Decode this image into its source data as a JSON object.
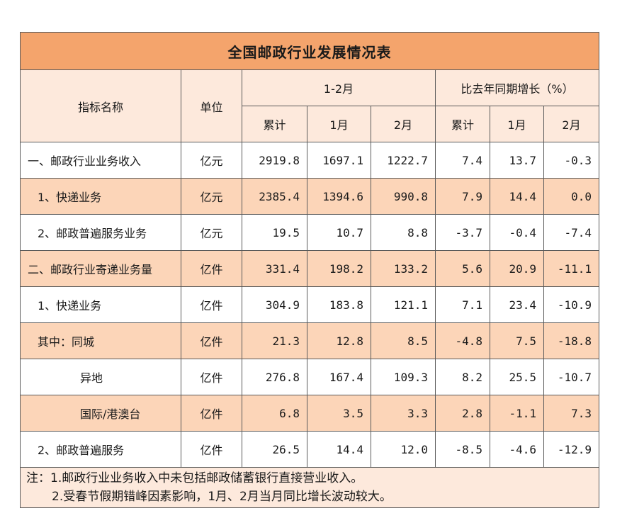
{
  "title": "全国邮政行业发展情况表",
  "headers": {
    "indicator": "指标名称",
    "unit": "单位",
    "period": "1-2月",
    "growth": "比去年同期增长（%）",
    "sub": [
      "累计",
      "1月",
      "2月",
      "累计",
      "1月",
      "2月"
    ]
  },
  "rows": [
    {
      "name": "一、邮政行业业务收入",
      "unit": "亿元",
      "values": [
        "2919.8",
        "1697.1",
        "1222.7",
        "7.4",
        "13.7",
        "-0.3"
      ]
    },
    {
      "name": "1、快递业务",
      "unit": "亿元",
      "values": [
        "2385.4",
        "1394.6",
        "990.8",
        "7.9",
        "14.4",
        "0.0"
      ]
    },
    {
      "name": "2、邮政普遍服务业务",
      "unit": "亿元",
      "values": [
        "19.5",
        "10.7",
        "8.8",
        "-3.7",
        "-0.4",
        "-7.4"
      ]
    },
    {
      "name": "二、邮政行业寄递业务量",
      "unit": "亿件",
      "values": [
        "331.4",
        "198.2",
        "133.2",
        "5.6",
        "20.9",
        "-11.1"
      ]
    },
    {
      "name": "1、快递业务",
      "unit": "亿件",
      "values": [
        "304.9",
        "183.8",
        "121.1",
        "7.1",
        "23.4",
        "-10.9"
      ]
    },
    {
      "name": "其中：同城",
      "unit": "亿件",
      "values": [
        "21.3",
        "12.8",
        "8.5",
        "-4.8",
        "7.5",
        "-18.8"
      ]
    },
    {
      "name": "异地",
      "unit": "亿件",
      "values": [
        "276.8",
        "167.4",
        "109.3",
        "8.2",
        "25.5",
        "-10.7"
      ]
    },
    {
      "name": "国际/港澳台",
      "unit": "亿件",
      "values": [
        "6.8",
        "3.5",
        "3.3",
        "2.8",
        "-1.1",
        "7.3"
      ]
    },
    {
      "name": "2、邮政普遍服务",
      "unit": "亿件",
      "values": [
        "26.5",
        "14.4",
        "12.0",
        "-8.5",
        "-4.6",
        "-12.9"
      ]
    }
  ],
  "notes": [
    "注：1.邮政行业业务收入中未包括邮政储蓄银行直接营业收入。",
    "2.受春节假期错峰因素影响，1月、2月当月同比增长波动较大。"
  ]
}
